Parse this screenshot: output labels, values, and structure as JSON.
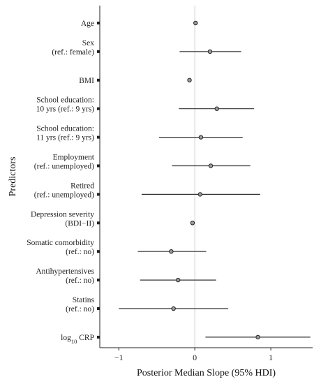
{
  "chart_data": {
    "type": "forest",
    "xlabel": "Posterior Median Slope (95% HDI)",
    "ylabel": "Predictors",
    "xlim": [
      -1.25,
      1.55
    ],
    "xticks": [
      -1,
      0,
      1
    ],
    "xtick_labels": [
      "−1",
      "0",
      "1"
    ],
    "reference_line": 0,
    "grid": false,
    "predictors": [
      {
        "lines": [
          "Age"
        ],
        "median": 0.01,
        "lower": null,
        "upper": null
      },
      {
        "lines": [
          "Sex",
          "(ref.: female)"
        ],
        "median": 0.2,
        "lower": -0.2,
        "upper": 0.61
      },
      {
        "lines": [
          "BMI"
        ],
        "median": -0.07,
        "lower": null,
        "upper": null
      },
      {
        "lines": [
          "School education:",
          "10 yrs (ref.: 9 yrs)"
        ],
        "median": 0.29,
        "lower": -0.21,
        "upper": 0.78
      },
      {
        "lines": [
          "School education:",
          "11 yrs (ref.: 9 yrs)"
        ],
        "median": 0.08,
        "lower": -0.47,
        "upper": 0.63
      },
      {
        "lines": [
          "Employment",
          "(ref.: unemployed)"
        ],
        "median": 0.21,
        "lower": -0.3,
        "upper": 0.73
      },
      {
        "lines": [
          "Retired",
          "(ref.: unemployed)"
        ],
        "median": 0.07,
        "lower": -0.7,
        "upper": 0.86
      },
      {
        "lines": [
          "Depression severity",
          "(BDI−II)"
        ],
        "median": -0.03,
        "lower": null,
        "upper": null
      },
      {
        "lines": [
          "Somatic comorbidity",
          "(ref.: no)"
        ],
        "median": -0.31,
        "lower": -0.75,
        "upper": 0.15
      },
      {
        "lines": [
          "Antihypertensives",
          "(ref.: no)"
        ],
        "median": -0.22,
        "lower": -0.72,
        "upper": 0.28
      },
      {
        "lines": [
          "Statins",
          "(ref.: no)"
        ],
        "median": -0.28,
        "lower": -1.0,
        "upper": 0.44
      },
      {
        "lines": [
          "log10 CRP"
        ],
        "median": 0.83,
        "lower": 0.14,
        "upper": 1.52
      }
    ]
  }
}
